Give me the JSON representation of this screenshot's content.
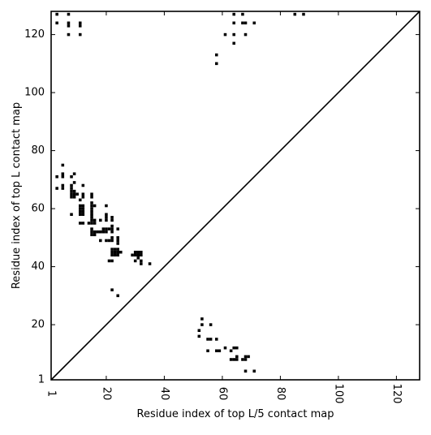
{
  "chart_data": {
    "type": "scatter",
    "title": "",
    "xlabel": "Residue index of top L/5 contact map",
    "ylabel": "Residue index of top L contact map",
    "xlim": [
      1,
      128
    ],
    "ylim": [
      1,
      128
    ],
    "x_ticks": [
      1,
      20,
      40,
      60,
      80,
      100,
      120
    ],
    "y_ticks": [
      1,
      20,
      40,
      60,
      80,
      100,
      120
    ],
    "x_tick_labels": [
      "1",
      "20",
      "40",
      "60",
      "80",
      "100",
      "120"
    ],
    "y_tick_labels": [
      "1",
      "20",
      "40",
      "60",
      "80",
      "100",
      "120"
    ],
    "diagonal": {
      "from": [
        1,
        1
      ],
      "to": [
        128,
        128
      ]
    },
    "marker": "square",
    "grid": false,
    "series": [
      {
        "label_position": "upper-left",
        "points": [
          [
            3,
            127
          ],
          [
            7,
            127
          ],
          [
            3,
            124
          ],
          [
            7,
            124
          ],
          [
            11,
            124
          ],
          [
            7,
            123
          ],
          [
            11,
            123
          ],
          [
            7,
            120
          ],
          [
            11,
            120
          ],
          [
            5,
            75
          ],
          [
            5,
            72
          ],
          [
            5,
            71
          ],
          [
            3,
            71
          ],
          [
            9,
            72
          ],
          [
            8,
            71
          ],
          [
            5,
            68
          ],
          [
            5,
            67
          ],
          [
            3,
            67
          ],
          [
            8,
            68
          ],
          [
            8,
            67
          ],
          [
            9,
            69
          ],
          [
            12,
            68
          ],
          [
            8,
            66
          ],
          [
            9,
            66
          ],
          [
            8,
            65
          ],
          [
            9,
            65
          ],
          [
            10,
            65
          ],
          [
            8,
            64
          ],
          [
            9,
            64
          ],
          [
            12,
            65
          ],
          [
            12,
            64
          ],
          [
            11,
            63
          ],
          [
            11,
            61
          ],
          [
            11,
            60
          ],
          [
            12,
            61
          ],
          [
            12,
            60
          ],
          [
            11,
            59
          ],
          [
            12,
            59
          ],
          [
            11,
            58
          ],
          [
            12,
            58
          ],
          [
            8,
            58
          ],
          [
            15,
            65
          ],
          [
            15,
            64
          ],
          [
            15,
            62
          ],
          [
            15,
            61
          ],
          [
            15,
            60
          ],
          [
            15,
            59
          ],
          [
            15,
            58
          ],
          [
            15,
            57
          ],
          [
            15,
            56
          ],
          [
            16,
            61
          ],
          [
            16,
            56
          ],
          [
            16,
            55
          ],
          [
            11,
            55
          ],
          [
            12,
            55
          ],
          [
            14,
            55
          ],
          [
            15,
            55
          ],
          [
            20,
            61
          ],
          [
            20,
            58
          ],
          [
            20,
            57
          ],
          [
            22,
            57
          ],
          [
            22,
            56
          ],
          [
            18,
            56
          ],
          [
            20,
            56
          ],
          [
            22,
            54
          ],
          [
            15,
            53
          ],
          [
            15,
            52
          ],
          [
            15,
            51
          ],
          [
            16,
            52
          ],
          [
            16,
            51
          ],
          [
            17,
            52
          ],
          [
            18,
            52
          ],
          [
            19,
            52
          ],
          [
            20,
            52
          ],
          [
            19,
            53
          ],
          [
            20,
            53
          ],
          [
            21,
            53
          ],
          [
            22,
            53
          ],
          [
            22,
            52
          ],
          [
            24,
            53
          ],
          [
            18,
            49
          ],
          [
            20,
            49
          ],
          [
            21,
            49
          ],
          [
            22,
            49
          ],
          [
            22,
            50
          ],
          [
            24,
            50
          ],
          [
            24,
            49
          ],
          [
            24,
            48
          ],
          [
            21,
            42
          ],
          [
            22,
            42
          ],
          [
            22,
            46
          ],
          [
            23,
            46
          ],
          [
            24,
            46
          ],
          [
            22,
            45
          ],
          [
            23,
            45
          ],
          [
            24,
            45
          ],
          [
            22,
            44
          ],
          [
            23,
            44
          ],
          [
            24,
            44
          ],
          [
            25,
            45
          ],
          [
            29,
            44
          ],
          [
            30,
            44
          ],
          [
            31,
            44
          ],
          [
            30,
            45
          ],
          [
            31,
            45
          ],
          [
            32,
            45
          ],
          [
            32,
            44
          ],
          [
            30,
            42
          ],
          [
            31,
            43
          ],
          [
            32,
            42
          ],
          [
            32,
            41
          ],
          [
            35,
            41
          ],
          [
            22,
            32
          ],
          [
            24,
            30
          ],
          [
            58,
            113
          ],
          [
            58,
            110
          ],
          [
            61,
            120
          ],
          [
            64,
            120
          ],
          [
            64,
            117
          ],
          [
            64,
            124
          ],
          [
            64,
            127
          ],
          [
            67,
            127
          ],
          [
            67,
            124
          ],
          [
            68,
            124
          ],
          [
            68,
            120
          ],
          [
            71,
            124
          ],
          [
            85,
            127
          ],
          [
            88,
            127
          ]
        ]
      },
      {
        "label_position": "lower-right",
        "points": [
          [
            53,
            22
          ],
          [
            53,
            20
          ],
          [
            52,
            18
          ],
          [
            56,
            20
          ],
          [
            52,
            16
          ],
          [
            55,
            15
          ],
          [
            56,
            15
          ],
          [
            58,
            15
          ],
          [
            55,
            11
          ],
          [
            58,
            11
          ],
          [
            59,
            11
          ],
          [
            61,
            12
          ],
          [
            63,
            11
          ],
          [
            64,
            12
          ],
          [
            65,
            12
          ],
          [
            63,
            8
          ],
          [
            64,
            8
          ],
          [
            65,
            8
          ],
          [
            65,
            9
          ],
          [
            67,
            8
          ],
          [
            68,
            8
          ],
          [
            68,
            9
          ],
          [
            69,
            9
          ],
          [
            68,
            4
          ],
          [
            71,
            4
          ]
        ]
      }
    ]
  }
}
